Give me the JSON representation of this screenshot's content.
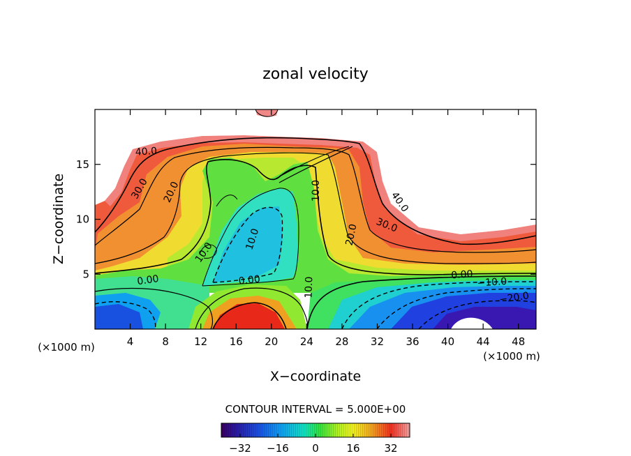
{
  "chart_data": {
    "type": "heatmap",
    "variable": "zonal velocity",
    "title": "zonal velocity",
    "xlabel": "X−coordinate",
    "ylabel": "Z−coordinate",
    "x_unit_left": "(×1000 m)",
    "x_unit_right": "(×1000 m)",
    "x_range": [
      0,
      50
    ],
    "y_range": [
      0,
      20
    ],
    "x_ticks": [
      4,
      8,
      12,
      16,
      20,
      24,
      28,
      32,
      36,
      40,
      44,
      48
    ],
    "y_ticks": [
      5,
      10,
      15
    ],
    "contour_interval_text": "CONTOUR INTERVAL = 5.000E+00",
    "contour_interval": 5.0,
    "colorbar": {
      "min": -40,
      "max": 40,
      "ticks": [
        -32,
        -16,
        0,
        16,
        32
      ],
      "tick_labels": [
        "−32",
        "−16",
        "0",
        "16",
        "32"
      ]
    },
    "contour_labels": [
      {
        "text": "40.0",
        "x": 5.8,
        "z": 16.2,
        "angle": -4
      },
      {
        "text": "30.0",
        "x": 5.0,
        "z": 12.8,
        "angle": -60
      },
      {
        "text": "20.0",
        "x": 8.6,
        "z": 12.5,
        "angle": -65
      },
      {
        "text": "10.0",
        "x": 12.3,
        "z": 7.0,
        "angle": -55
      },
      {
        "text": "10.0",
        "x": 17.8,
        "z": 8.2,
        "angle": -72
      },
      {
        "text": "0.00",
        "x": 6.0,
        "z": 4.5,
        "angle": -8
      },
      {
        "text": "0.00",
        "x": 17.5,
        "z": 4.5,
        "angle": -6
      },
      {
        "text": "10.0",
        "x": 25.0,
        "z": 12.6,
        "angle": -90
      },
      {
        "text": "10.0",
        "x": 24.2,
        "z": 3.8,
        "angle": -88
      },
      {
        "text": "20.0",
        "x": 29.0,
        "z": 8.6,
        "angle": -78
      },
      {
        "text": "30.0",
        "x": 33.1,
        "z": 9.5,
        "angle": 22
      },
      {
        "text": "40.0",
        "x": 34.6,
        "z": 11.6,
        "angle": 55
      },
      {
        "text": "0.00",
        "x": 41.6,
        "z": 5.0,
        "angle": -4
      },
      {
        "text": "−10.0",
        "x": 45.0,
        "z": 4.3,
        "angle": -4
      },
      {
        "text": "−20.0",
        "x": 47.5,
        "z": 2.9,
        "angle": -8
      }
    ],
    "features": [
      {
        "name": "upper easterly jet",
        "x": [
          0,
          50
        ],
        "z": [
          8,
          18
        ],
        "value_max": 45
      },
      {
        "name": "low-level jet",
        "x": [
          13,
          24
        ],
        "z": [
          0,
          3
        ],
        "value_max": 35
      },
      {
        "name": "mid-level minimum",
        "x": [
          15,
          21
        ],
        "z": [
          4,
          11
        ],
        "value_min": -15
      },
      {
        "name": "lower-right minimum",
        "x": [
          30,
          50
        ],
        "z": [
          0,
          5
        ],
        "value_min": -40
      },
      {
        "name": "lower-left minimum",
        "x": [
          0,
          8
        ],
        "z": [
          0,
          3
        ],
        "value_min": -30
      }
    ]
  }
}
